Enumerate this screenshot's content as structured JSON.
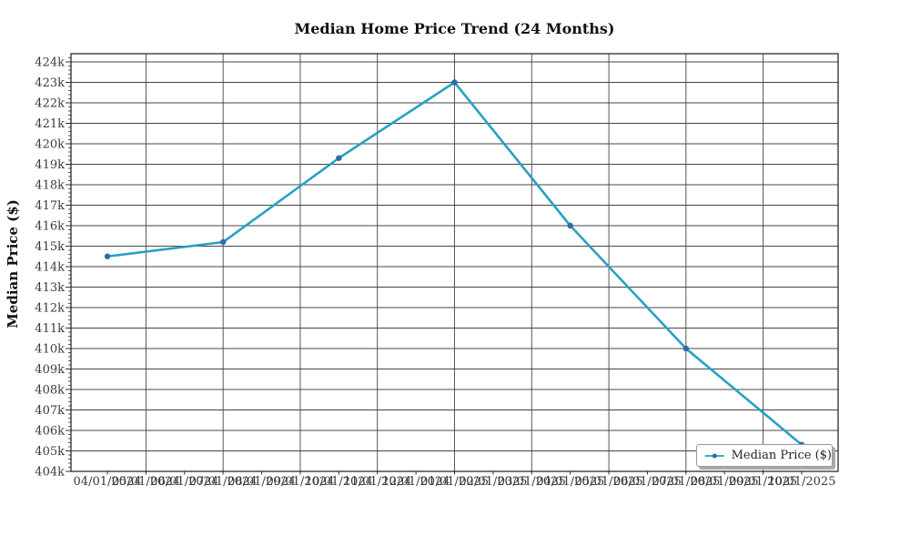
{
  "title": "Median Home Price Trend (24 Months)",
  "y_axis_title": "Median Price ($)",
  "legend": {
    "label": "Median Price ($)",
    "position": "lower right"
  },
  "colors": {
    "line": "#28a0c4",
    "marker": "#2d6cab",
    "grid": "#454545",
    "spine": "#1a1a1a",
    "tick_text": "#3a3a3a",
    "title_text": "#111111",
    "legend_border": "#9a9a9a",
    "legend_shadow": "#ababab",
    "background": "#ffffff"
  },
  "chart_data": {
    "type": "line",
    "title": "Median Home Price Trend (24 Months)",
    "xlabel": "",
    "ylabel": "Median Price ($)",
    "grid": "on",
    "legend_position": "lower right",
    "marker": "o",
    "ylim": [
      404000,
      424400
    ],
    "y_tick_labels": [
      "404k",
      "405k",
      "406k",
      "407k",
      "408k",
      "409k",
      "410k",
      "411k",
      "412k",
      "413k",
      "414k",
      "415k",
      "416k",
      "417k",
      "418k",
      "419k",
      "420k",
      "421k",
      "422k",
      "423k",
      "424k"
    ],
    "x_tick_labels": [
      "04/01/2024",
      "05/01/2024",
      "06/01/2024",
      "07/01/2024",
      "08/01/2024",
      "09/01/2024",
      "10/01/2024",
      "11/01/2024",
      "12/01/2024",
      "01/01/2025",
      "02/01/2025",
      "03/01/2025",
      "04/01/2025",
      "05/01/2025",
      "06/01/2025",
      "07/01/2025",
      "08/01/2025",
      "09/01/2025",
      "10/01/2025"
    ],
    "x_gridline_month_indices": [
      1,
      3,
      5,
      7,
      9,
      11,
      13,
      15,
      17
    ],
    "series": [
      {
        "name": "Median Price ($)",
        "x": [
          "04/01/2024",
          "07/01/2024",
          "10/01/2024",
          "01/01/2025",
          "04/01/2025",
          "07/01/2025",
          "10/01/2025"
        ],
        "month_index": [
          0,
          3,
          6,
          9,
          12,
          15,
          18
        ],
        "values": [
          414500,
          415200,
          419300,
          423000,
          416000,
          410000,
          405300
        ]
      }
    ]
  }
}
